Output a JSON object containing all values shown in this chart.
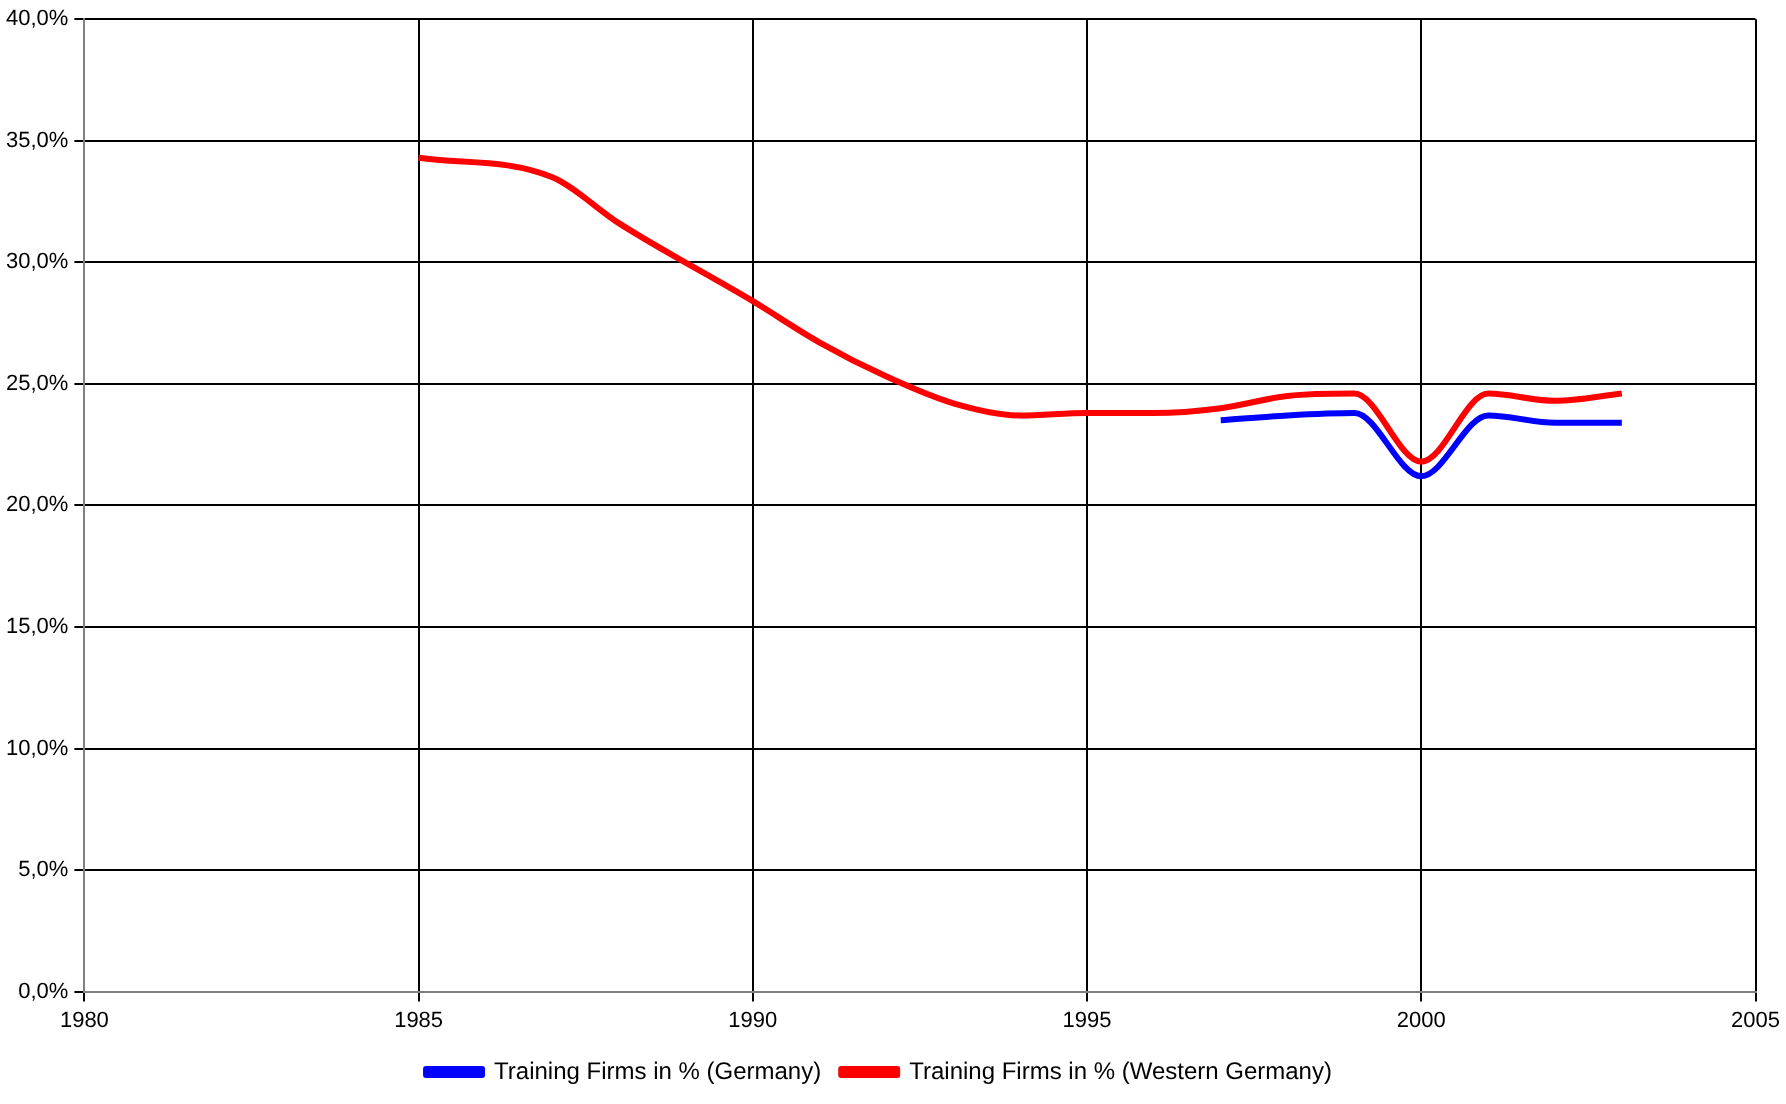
{
  "chart_data": {
    "type": "line",
    "x": [
      1985,
      1986,
      1987,
      1988,
      1989,
      1990,
      1991,
      1992,
      1993,
      1994,
      1995,
      1996,
      1997,
      1998,
      1999,
      2000,
      2001,
      2002,
      2003
    ],
    "series": [
      {
        "name": "Training Firms in % (Germany)",
        "color": "#0000ff",
        "values": [
          null,
          null,
          null,
          null,
          null,
          null,
          null,
          null,
          null,
          null,
          null,
          null,
          23.5,
          23.7,
          23.8,
          21.2,
          23.7,
          23.4,
          23.4
        ]
      },
      {
        "name": "Training Firms in % (Western Germany)",
        "color": "#ff0000",
        "values": [
          34.3,
          null,
          33.5,
          31.6,
          null,
          28.4,
          26.7,
          25.3,
          24.2,
          23.7,
          23.8,
          23.8,
          24.0,
          24.5,
          24.6,
          21.8,
          24.6,
          24.3,
          24.6
        ]
      }
    ],
    "xlim": [
      1980,
      2005
    ],
    "xticks": [
      1980,
      1985,
      1990,
      1995,
      2000,
      2005
    ],
    "ylim": [
      0,
      40
    ],
    "yticks": [
      {
        "value": 0,
        "label": "0,0%"
      },
      {
        "value": 5,
        "label": "5,0%"
      },
      {
        "value": 10,
        "label": "10,0%"
      },
      {
        "value": 15,
        "label": "15,0%"
      },
      {
        "value": 20,
        "label": "20,0%"
      },
      {
        "value": 25,
        "label": "25,0%"
      },
      {
        "value": 30,
        "label": "30,0%"
      },
      {
        "value": 35,
        "label": "35,0%"
      },
      {
        "value": 40,
        "label": "40,0%"
      }
    ],
    "grid": true,
    "legend": "bottom",
    "marker": "none",
    "line_style": "solid"
  }
}
